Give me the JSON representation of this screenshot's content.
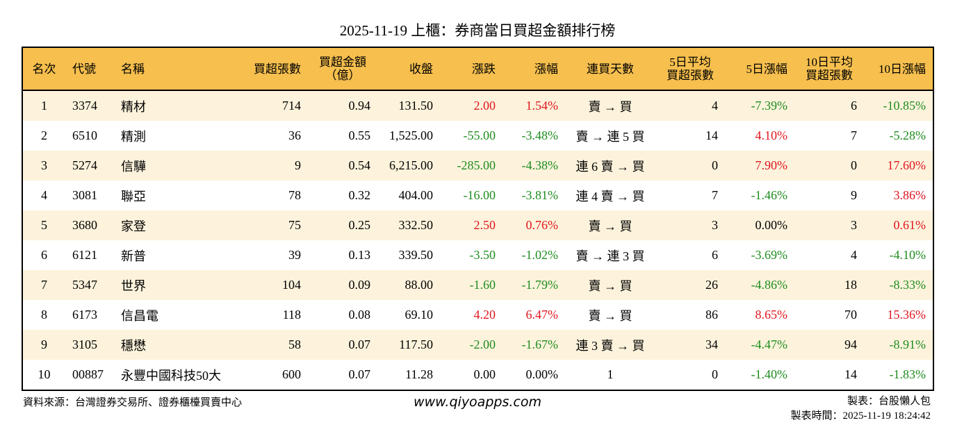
{
  "title": "2025-11-19 上櫃：券商當日買超金額排行榜",
  "colors": {
    "header": "#F6BF4E",
    "odd_row": "#FDF3DC",
    "up": "#E0141E",
    "down": "#1E8C1E"
  },
  "headers": [
    "名次",
    "代號",
    "名稱",
    "買超張數",
    "買超金額\n（億）",
    "收盤",
    "漲跌",
    "漲幅",
    "連買天數",
    "5日平均\n買超張數",
    "5日漲幅",
    "10日平均\n買超張數",
    "10日漲幅"
  ],
  "rows": [
    [
      "1",
      "3374",
      "精材",
      "714",
      "0.94",
      "131.50",
      "2.00",
      "1.54%",
      "賣 → 買",
      "4",
      "-7.39%",
      "6",
      "-10.85%"
    ],
    [
      "2",
      "6510",
      "精測",
      "36",
      "0.55",
      "1,525.00",
      "-55.00",
      "-3.48%",
      "賣 → 連 5 買",
      "14",
      "4.10%",
      "7",
      "-5.28%"
    ],
    [
      "3",
      "5274",
      "信驊",
      "9",
      "0.54",
      "6,215.00",
      "-285.00",
      "-4.38%",
      "連 6 賣 → 買",
      "0",
      "7.90%",
      "0",
      "17.60%"
    ],
    [
      "4",
      "3081",
      "聯亞",
      "78",
      "0.32",
      "404.00",
      "-16.00",
      "-3.81%",
      "連 4 賣 → 買",
      "7",
      "-1.46%",
      "9",
      "3.86%"
    ],
    [
      "5",
      "3680",
      "家登",
      "75",
      "0.25",
      "332.50",
      "2.50",
      "0.76%",
      "賣 → 買",
      "3",
      "0.00%",
      "3",
      "0.61%"
    ],
    [
      "6",
      "6121",
      "新普",
      "39",
      "0.13",
      "339.50",
      "-3.50",
      "-1.02%",
      "賣 → 連 3 買",
      "6",
      "-3.69%",
      "4",
      "-4.10%"
    ],
    [
      "7",
      "5347",
      "世界",
      "104",
      "0.09",
      "88.00",
      "-1.60",
      "-1.79%",
      "賣 → 買",
      "26",
      "-4.86%",
      "18",
      "-8.33%"
    ],
    [
      "8",
      "6173",
      "信昌電",
      "118",
      "0.08",
      "69.10",
      "4.20",
      "6.47%",
      "賣 → 買",
      "86",
      "8.65%",
      "70",
      "15.36%"
    ],
    [
      "9",
      "3105",
      "穩懋",
      "58",
      "0.07",
      "117.50",
      "-2.00",
      "-1.67%",
      "連 3 賣 → 買",
      "34",
      "-4.47%",
      "94",
      "-8.91%"
    ],
    [
      "10",
      "00887",
      "永豐中國科技50大",
      "600",
      "0.07",
      "11.28",
      "0.00",
      "0.00%",
      "1",
      "0",
      "-1.40%",
      "14",
      "-1.83%"
    ]
  ],
  "footer": {
    "source": "資料來源：台灣證券交易所、證券櫃檯買賣中心",
    "site": "www.qiyoapps.com",
    "author": "製表：台股懶人包",
    "time": "製表時間：2025-11-19 18:24:42"
  }
}
